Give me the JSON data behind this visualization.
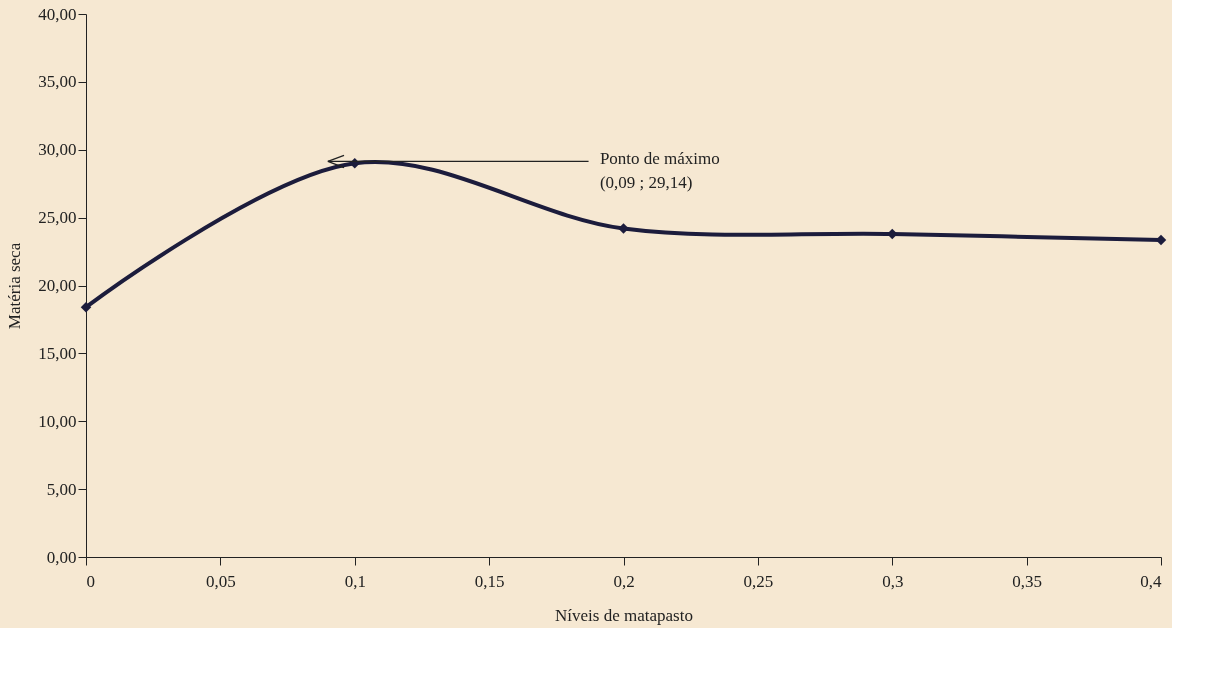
{
  "chart_data": {
    "type": "line",
    "xlabel": "Níveis de matapasto",
    "ylabel": "Matéria seca",
    "x": [
      0,
      0.1,
      0.2,
      0.3,
      0.4
    ],
    "series": [
      {
        "color": "#1c1c3c",
        "values": [
          18.4,
          29.0,
          24.2,
          23.8,
          23.35
        ]
      }
    ],
    "marker": "diamond",
    "line_style": "solid",
    "grid": false,
    "xlim": [
      0,
      0.4
    ],
    "xticks": [
      0,
      {
        "value": 0.05,
        "label": "0,05"
      },
      {
        "value": 0.1,
        "label": "0,1"
      },
      {
        "value": 0.15,
        "label": "0,15"
      },
      {
        "value": 0.2,
        "label": "0,2"
      },
      {
        "value": 0.25,
        "label": "0,25"
      },
      {
        "value": 0.3,
        "label": "0,3"
      },
      {
        "value": 0.35,
        "label": "0,35"
      },
      {
        "value": 0.4,
        "label": "0,4"
      }
    ],
    "ylim": [
      0,
      40
    ],
    "yticks": [
      {
        "value": 0,
        "label": "0,00"
      },
      {
        "value": 5,
        "label": "5,00"
      },
      {
        "value": 10,
        "label": "10,00"
      },
      {
        "value": 15,
        "label": "15,00"
      },
      {
        "value": 20,
        "label": "20,00"
      },
      {
        "value": 25,
        "label": "25,00"
      },
      {
        "value": 30,
        "label": "30,00"
      },
      {
        "value": 35,
        "label": "35,00"
      },
      {
        "value": 40,
        "label": "40,00"
      }
    ],
    "annotations": [
      {
        "text": "Ponto de máximo\n(0,09 ; 29,14)",
        "x": 0.09,
        "y": 29.14
      }
    ]
  }
}
